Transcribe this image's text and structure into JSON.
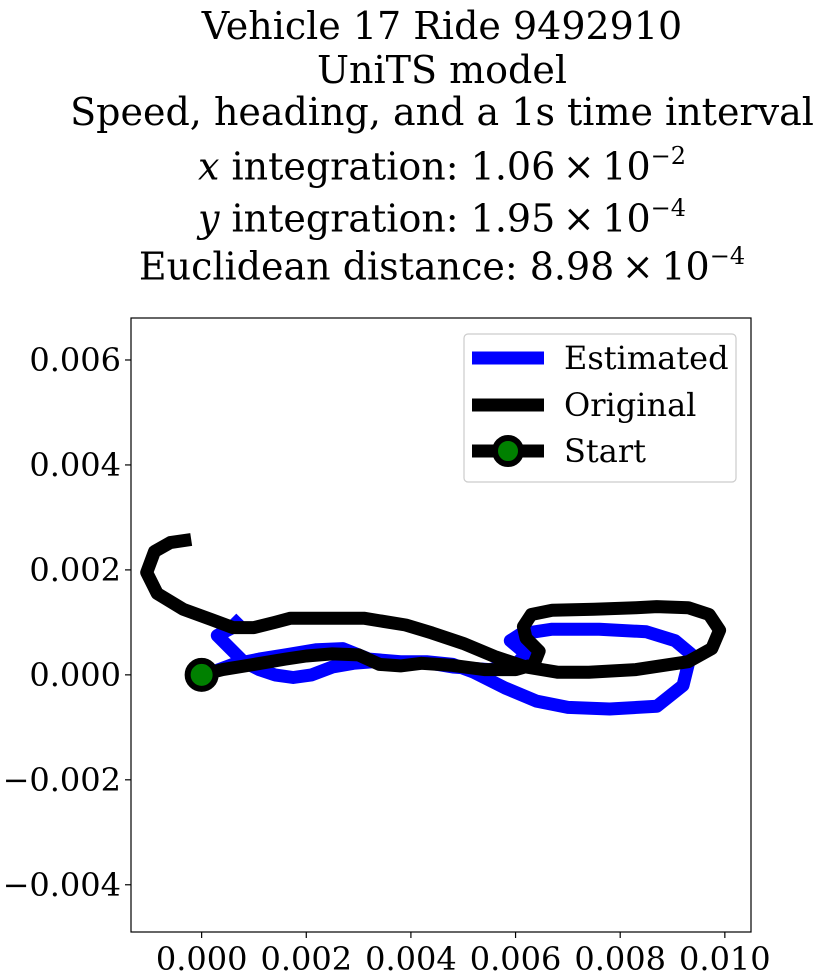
{
  "chart_data": {
    "type": "line",
    "title_lines": {
      "line1": "Vehicle 17 Ride 9492910",
      "line2": "UniTS model",
      "line3": "Speed, heading, and a 1s time interval",
      "x_integration": {
        "var": "x",
        "text": " integration: 1.06 × 10",
        "exp": "−2"
      },
      "y_integration": {
        "var": "y",
        "text": " integration: 1.95 × 10",
        "exp": "−4"
      },
      "euclid": {
        "text": "Euclidean distance: 8.98 × 10",
        "exp": "−4"
      }
    },
    "xlabel": "",
    "ylabel": "",
    "xlim": [
      -0.00135,
      0.0105
    ],
    "ylim": [
      -0.0049,
      0.0068
    ],
    "x_ticks": [
      0.0,
      0.002,
      0.004,
      0.006,
      0.008,
      0.01
    ],
    "x_tick_labels": [
      "0.000",
      "0.002",
      "0.004",
      "0.006",
      "0.008",
      "0.010"
    ],
    "y_ticks": [
      0.006,
      0.004,
      0.002,
      0.0,
      -0.002,
      -0.004
    ],
    "y_tick_labels": [
      "0.006",
      "0.004",
      "0.002",
      "0.000",
      "−0.002",
      "−0.004"
    ],
    "grid": false,
    "legend_position": "top-right",
    "series": [
      {
        "name": "Estimated",
        "color": "#0000ff",
        "points": [
          [
            0.00075,
            0.00108
          ],
          [
            0.00055,
            0.00088
          ],
          [
            0.0003,
            0.00075
          ],
          [
            0.00055,
            0.0005
          ],
          [
            0.0008,
            0.00025
          ],
          [
            0.0011,
            0.0001
          ],
          [
            0.0014,
            0.0
          ],
          [
            0.00175,
            -5e-05
          ],
          [
            0.0021,
            0.0
          ],
          [
            0.0025,
            0.00015
          ],
          [
            0.0029,
            0.00022
          ],
          [
            0.0033,
            0.00025
          ],
          [
            0.0038,
            0.00025
          ],
          [
            0.0043,
            0.00025
          ],
          [
            0.0048,
            0.0002
          ],
          [
            0.0052,
            5e-05
          ],
          [
            0.0058,
            -0.00025
          ],
          [
            0.0064,
            -0.0005
          ],
          [
            0.007,
            -0.00062
          ],
          [
            0.0078,
            -0.00065
          ],
          [
            0.0087,
            -0.0006
          ],
          [
            0.0092,
            -0.0002
          ],
          [
            0.00935,
            0.0004
          ],
          [
            0.00905,
            0.00065
          ],
          [
            0.0085,
            0.00082
          ],
          [
            0.0076,
            0.00087
          ],
          [
            0.0067,
            0.00087
          ],
          [
            0.0061,
            0.00078
          ],
          [
            0.0059,
            0.00065
          ],
          [
            0.0062,
            0.0004
          ],
          [
            0.006,
            0.0002
          ],
          [
            0.0055,
            0.0001
          ],
          [
            0.0048,
            0.00015
          ],
          [
            0.0042,
            0.00025
          ],
          [
            0.0038,
            0.00025
          ],
          [
            0.0032,
            0.0003
          ],
          [
            0.0027,
            0.0005
          ],
          [
            0.0022,
            0.00048
          ],
          [
            0.0016,
            0.00038
          ],
          [
            0.0011,
            0.0003
          ],
          [
            0.0006,
            0.0002
          ],
          [
            0.0002,
            5e-05
          ],
          [
            0.0,
            0.0
          ]
        ]
      },
      {
        "name": "Original",
        "color": "#000000",
        "points": [
          [
            0.0,
            0.0
          ],
          [
            0.0004,
            0.0001
          ],
          [
            0.001,
            0.0002
          ],
          [
            0.0016,
            0.0003
          ],
          [
            0.002,
            0.00036
          ],
          [
            0.0025,
            0.0004
          ],
          [
            0.003,
            0.00038
          ],
          [
            0.0034,
            0.0002
          ],
          [
            0.0038,
            0.00017
          ],
          [
            0.0042,
            0.00022
          ],
          [
            0.0048,
            0.00018
          ],
          [
            0.0054,
            0.0001
          ],
          [
            0.006,
            0.0001
          ],
          [
            0.00635,
            0.0002
          ],
          [
            0.00645,
            0.00045
          ],
          [
            0.0062,
            0.0007
          ],
          [
            0.00615,
            0.00092
          ],
          [
            0.0063,
            0.00115
          ],
          [
            0.0067,
            0.00123
          ],
          [
            0.0075,
            0.00125
          ],
          [
            0.0083,
            0.00128
          ],
          [
            0.0087,
            0.0013
          ],
          [
            0.0093,
            0.00128
          ],
          [
            0.0097,
            0.00115
          ],
          [
            0.0099,
            0.00085
          ],
          [
            0.00975,
            0.0005
          ],
          [
            0.0093,
            0.00025
          ],
          [
            0.0083,
            0.0001
          ],
          [
            0.0074,
            5e-05
          ],
          [
            0.0068,
            5e-05
          ],
          [
            0.0062,
            0.00015
          ],
          [
            0.0056,
            0.00035
          ],
          [
            0.005,
            0.0006
          ],
          [
            0.0044,
            0.0008
          ],
          [
            0.0039,
            0.00095
          ],
          [
            0.0031,
            0.00108
          ],
          [
            0.0023,
            0.00108
          ],
          [
            0.0017,
            0.00108
          ],
          [
            0.0014,
            0.001
          ],
          [
            0.001,
            0.0009
          ],
          [
            0.0006,
            0.0009
          ],
          [
            0.0002,
            0.00105
          ],
          [
            -0.00035,
            0.00125
          ],
          [
            -0.00085,
            0.00155
          ],
          [
            -0.00105,
            0.00195
          ],
          [
            -0.0009,
            0.00235
          ],
          [
            -0.0006,
            0.00252
          ],
          [
            -0.0002,
            0.00258
          ]
        ]
      }
    ],
    "start": {
      "name": "Start",
      "x": 0.0,
      "y": 0.0,
      "face_color": "#008000",
      "edge_color": "#000000"
    },
    "legend": [
      {
        "label": "Estimated",
        "color": "#0000ff"
      },
      {
        "label": "Original",
        "color": "#000000"
      },
      {
        "label": "Start",
        "color": "#000000",
        "marker_face": "#008000"
      }
    ]
  }
}
